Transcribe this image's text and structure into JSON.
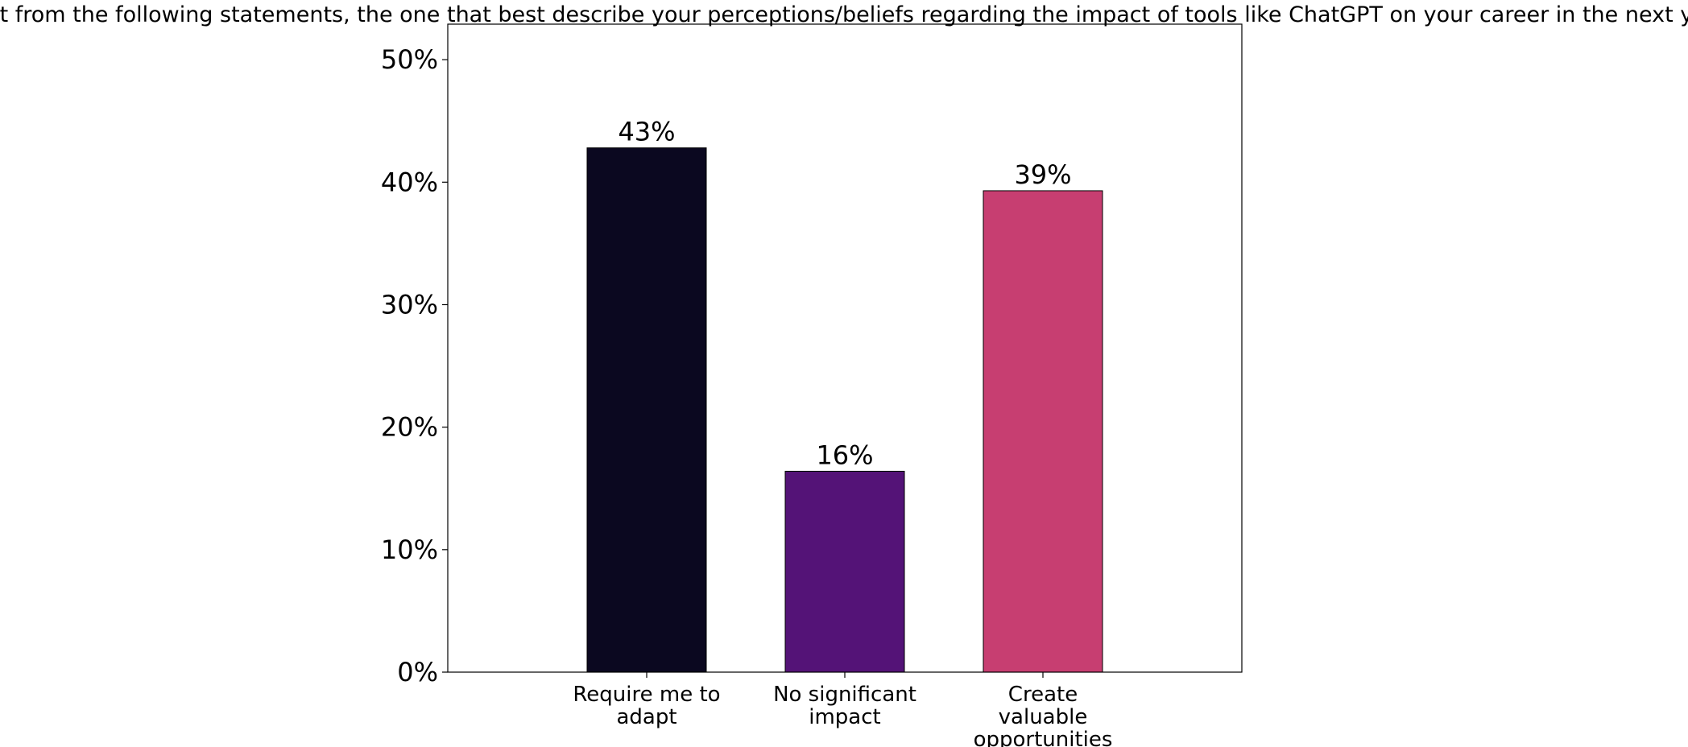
{
  "chart_data": {
    "type": "bar",
    "title": "Select from the following statements, the one that best describe your perceptions/beliefs regarding the impact of tools like ChatGPT on your career in the next years.",
    "xlabel": "",
    "ylabel": "",
    "categories": [
      [
        "Require me to",
        "adapt"
      ],
      [
        "No significant",
        "impact"
      ],
      [
        "Create",
        "valuable",
        "opportunities"
      ]
    ],
    "values": [
      42.8,
      16.4,
      39.3
    ],
    "data_labels": [
      "43%",
      "16%",
      "39%"
    ],
    "colors": [
      "#0b0820",
      "#541377",
      "#c73e71"
    ],
    "ylim": [
      0,
      52.9
    ],
    "yticks": [
      0,
      10,
      20,
      30,
      40,
      50
    ],
    "ytick_labels": [
      "0%",
      "10%",
      "20%",
      "30%",
      "40%",
      "50%"
    ],
    "grid": false,
    "legend": "none"
  }
}
